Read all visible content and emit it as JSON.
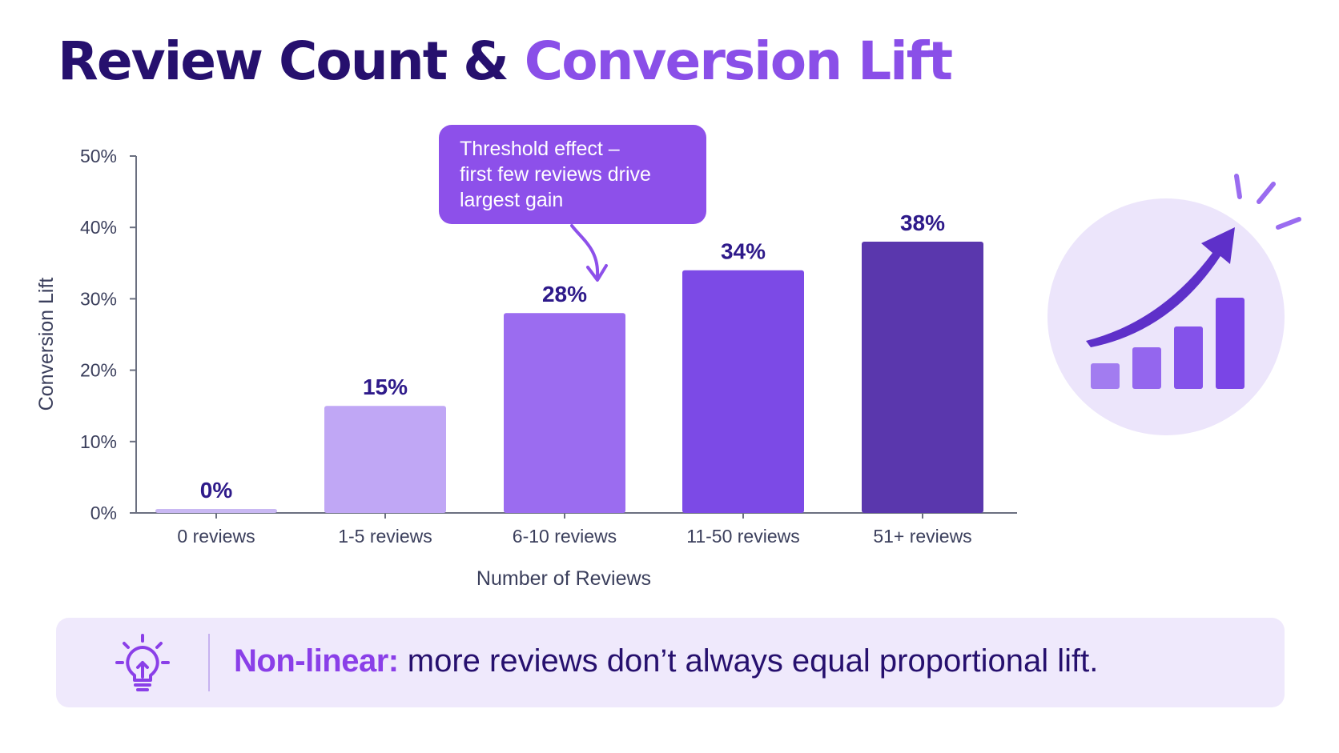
{
  "title": {
    "part1": "Review Count &",
    "part2": "Conversion Lift"
  },
  "callout": {
    "lines": [
      "Threshold effect –",
      "first few reviews drive",
      "largest gain"
    ]
  },
  "insight": {
    "lead": "Non-linear:",
    "body": "more reviews don’t always equal proportional lift."
  },
  "colors": {
    "title_dark": "#26106e",
    "title_accent": "#8a4fe8",
    "callout_bg": "#8d50ea",
    "bars": [
      "#c9b8f3",
      "#c0a7f5",
      "#9b6cf0",
      "#7c4ae6",
      "#5a37ad"
    ],
    "value_labels": "#2e1a8a",
    "axis": "#6b7080",
    "banner_bg": "#efe9fc"
  },
  "icons": {
    "illustration": "growth-chart-icon",
    "insight": "lightbulb-icon"
  },
  "chart_data": {
    "type": "bar",
    "title": "",
    "xlabel": "Number of Reviews",
    "ylabel": "Conversion Lift",
    "categories": [
      "0 reviews",
      "1-5 reviews",
      "6-10 reviews",
      "11-50 reviews",
      "51+ reviews"
    ],
    "values": [
      0,
      15,
      28,
      34,
      38
    ],
    "data_labels": [
      "0%",
      "15%",
      "28%",
      "34%",
      "38%"
    ],
    "ylim": [
      0,
      50
    ],
    "yticks": [
      0,
      10,
      20,
      30,
      40,
      50
    ],
    "ytick_labels": [
      "0%",
      "10%",
      "20%",
      "30%",
      "40%",
      "50%"
    ],
    "grid": false,
    "legend": "none",
    "annotation": {
      "category": "6-10 reviews",
      "text": "Threshold effect – first few reviews drive largest gain"
    }
  }
}
